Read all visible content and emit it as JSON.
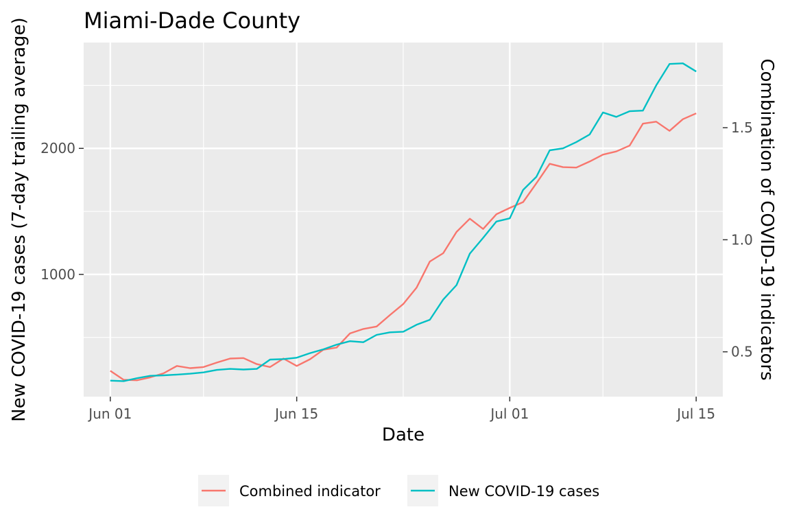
{
  "chart_data": {
    "type": "line",
    "title": "Miami-Dade County",
    "xlabel": "Date",
    "ylabel_left": "New COVID-19 cases (7-day trailing average)",
    "ylabel_right": "Combination of COVID-19 indicators",
    "x_ticks": [
      "Jun 01",
      "Jun 15",
      "Jul 01",
      "Jul 15"
    ],
    "y_left_ticks": [
      "1000",
      "2000"
    ],
    "y_right_ticks": [
      "0.5",
      "1.0",
      "1.5"
    ],
    "xlim": [
      "2020-05-30",
      "2020-07-17"
    ],
    "ylim_left": [
      30,
      2840
    ],
    "ylim_right": [
      0.3,
      1.88
    ],
    "grid": true,
    "legend_position": "bottom",
    "x": [
      "2020-06-01",
      "2020-06-02",
      "2020-06-03",
      "2020-06-04",
      "2020-06-05",
      "2020-06-06",
      "2020-06-07",
      "2020-06-08",
      "2020-06-09",
      "2020-06-10",
      "2020-06-11",
      "2020-06-12",
      "2020-06-13",
      "2020-06-14",
      "2020-06-15",
      "2020-06-16",
      "2020-06-17",
      "2020-06-18",
      "2020-06-19",
      "2020-06-20",
      "2020-06-21",
      "2020-06-22",
      "2020-06-23",
      "2020-06-24",
      "2020-06-25",
      "2020-06-26",
      "2020-06-27",
      "2020-06-28",
      "2020-06-29",
      "2020-06-30",
      "2020-07-01",
      "2020-07-02",
      "2020-07-03",
      "2020-07-04",
      "2020-07-05",
      "2020-07-06",
      "2020-07-07",
      "2020-07-08",
      "2020-07-09",
      "2020-07-10",
      "2020-07-11",
      "2020-07-12",
      "2020-07-13",
      "2020-07-14",
      "2020-07-15"
    ],
    "series": [
      {
        "name": "Combined indicator",
        "color": "#F8766D",
        "axis": "right",
        "values": [
          0.415,
          0.375,
          0.373,
          0.386,
          0.404,
          0.437,
          0.427,
          0.432,
          0.452,
          0.47,
          0.472,
          0.445,
          0.432,
          0.47,
          0.437,
          0.467,
          0.509,
          0.519,
          0.582,
          0.602,
          0.613,
          0.664,
          0.713,
          0.786,
          0.903,
          0.94,
          1.035,
          1.094,
          1.048,
          1.114,
          1.142,
          1.168,
          1.252,
          1.339,
          1.324,
          1.322,
          1.349,
          1.38,
          1.394,
          1.42,
          1.518,
          1.527,
          1.486,
          1.538,
          1.564
        ]
      },
      {
        "name": "New COVID-19 cases",
        "color": "#00BFC4",
        "axis": "left",
        "values": [
          157,
          153,
          176,
          195,
          199,
          205,
          212,
          222,
          242,
          250,
          245,
          250,
          324,
          328,
          339,
          375,
          405,
          442,
          470,
          462,
          520,
          540,
          545,
          600,
          640,
          800,
          915,
          1165,
          1290,
          1420,
          1445,
          1670,
          1775,
          1985,
          2000,
          2050,
          2110,
          2285,
          2250,
          2295,
          2300,
          2500,
          2670,
          2675,
          2610
        ]
      }
    ]
  }
}
